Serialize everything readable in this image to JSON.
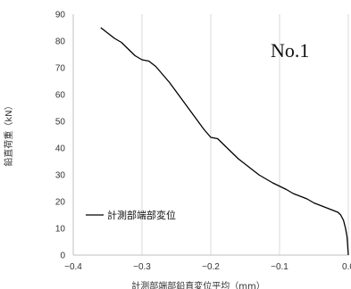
{
  "chart_data": {
    "type": "line",
    "title": "",
    "annotation": "No.1",
    "xlabel": "計測部端部鉛直変位平均（mm）",
    "ylabel": "鉛直荷重（kN）",
    "xlim": [
      -0.4,
      0.0
    ],
    "ylim": [
      0,
      90
    ],
    "xticks": [
      -0.4,
      -0.3,
      -0.2,
      -0.1,
      0.0
    ],
    "xtick_labels": [
      "−0.4",
      "−0.3",
      "−0.2",
      "−0.1",
      "0.0"
    ],
    "yticks": [
      0,
      10,
      20,
      30,
      40,
      50,
      60,
      70,
      80,
      90
    ],
    "ytick_labels": [
      "0",
      "10",
      "20",
      "30",
      "40",
      "50",
      "60",
      "70",
      "80",
      "90"
    ],
    "grid": "vertical",
    "legend_position": "lower-left",
    "series": [
      {
        "name": "計測部端部変位",
        "color": "#000000",
        "x": [
          0.0,
          -0.001,
          -0.002,
          -0.004,
          -0.007,
          -0.011,
          -0.015,
          -0.02,
          -0.03,
          -0.04,
          -0.05,
          -0.06,
          -0.07,
          -0.08,
          -0.09,
          -0.098,
          -0.102,
          -0.11,
          -0.12,
          -0.13,
          -0.14,
          -0.15,
          -0.16,
          -0.17,
          -0.18,
          -0.19,
          -0.2,
          -0.21,
          -0.22,
          -0.23,
          -0.24,
          -0.25,
          -0.26,
          -0.27,
          -0.28,
          -0.29,
          -0.3,
          -0.31,
          -0.32,
          -0.33,
          -0.34,
          -0.35,
          -0.36
        ],
        "y": [
          0,
          4,
          7,
          10,
          13,
          15,
          16,
          16.5,
          17.5,
          18.5,
          19.5,
          21,
          22,
          23,
          24.5,
          25.5,
          26,
          27,
          28.5,
          30,
          32,
          34,
          36,
          38.5,
          41,
          43.5,
          44,
          47,
          50.5,
          54,
          57.5,
          61,
          64.5,
          67.5,
          70.5,
          72.5,
          73,
          74.5,
          77,
          79.5,
          81,
          83,
          85
        ]
      }
    ]
  }
}
